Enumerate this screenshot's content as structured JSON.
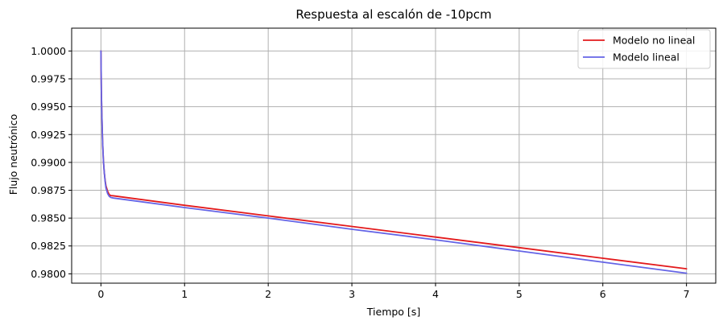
{
  "chart_data": {
    "type": "line",
    "title": "Respuesta al escalón de -10pcm",
    "xlabel": "Tiempo [s]",
    "ylabel": "Flujo neutrónico",
    "xlim": [
      -0.35,
      7.35
    ],
    "ylim": [
      0.97916,
      1.00205
    ],
    "xticks": [
      0,
      1,
      2,
      3,
      4,
      5,
      6,
      7
    ],
    "xtick_labels": [
      "0",
      "1",
      "2",
      "3",
      "4",
      "5",
      "6",
      "7"
    ],
    "yticks": [
      0.98,
      0.9825,
      0.985,
      0.9875,
      0.99,
      0.9925,
      0.995,
      0.9975,
      1.0
    ],
    "ytick_labels": [
      "0.9800",
      "0.9825",
      "0.9850",
      "0.9875",
      "0.9900",
      "0.9925",
      "0.9950",
      "0.9975",
      "1.0000"
    ],
    "grid": true,
    "legend_position": "top-right",
    "series": [
      {
        "name": "Modelo no lineal",
        "color": "#e31a1c",
        "x": [
          0,
          0.005,
          0.01,
          0.02,
          0.03,
          0.04,
          0.05,
          0.06,
          0.08,
          0.1,
          0.12,
          0.15,
          1,
          2,
          3,
          4,
          5,
          6,
          7
        ],
        "y": [
          1.0,
          0.9965,
          0.9945,
          0.9918,
          0.9901,
          0.9891,
          0.9884,
          0.9879,
          0.9874,
          0.9871,
          0.98702,
          0.987,
          0.98615,
          0.9852,
          0.98425,
          0.9833,
          0.98235,
          0.9814,
          0.98045
        ]
      },
      {
        "name": "Modelo lineal",
        "color": "#6464e6",
        "x": [
          0,
          0.005,
          0.01,
          0.02,
          0.03,
          0.04,
          0.05,
          0.06,
          0.08,
          0.1,
          0.12,
          0.15,
          1,
          2,
          3,
          4,
          5,
          6,
          7
        ],
        "y": [
          1.0,
          0.9965,
          0.9945,
          0.9918,
          0.9901,
          0.9891,
          0.9883,
          0.9877,
          0.9872,
          0.98695,
          0.98685,
          0.9868,
          0.98595,
          0.985,
          0.984,
          0.98305,
          0.98205,
          0.98105,
          0.98005
        ]
      }
    ]
  }
}
